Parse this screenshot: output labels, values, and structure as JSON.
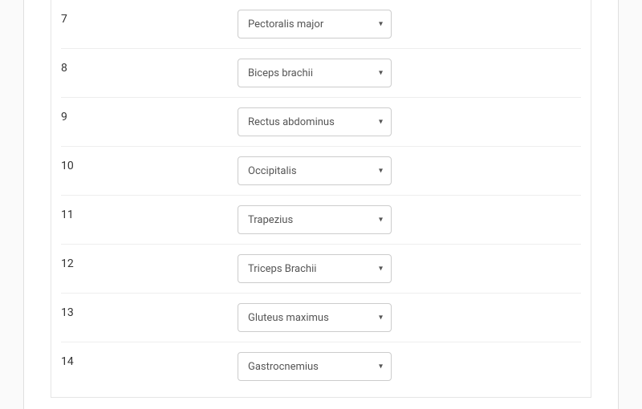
{
  "form": {
    "rows": [
      {
        "number": "7",
        "value": "Pectoralis major"
      },
      {
        "number": "8",
        "value": "Biceps brachii"
      },
      {
        "number": "9",
        "value": "Rectus abdominus"
      },
      {
        "number": "10",
        "value": "Occipitalis"
      },
      {
        "number": "11",
        "value": "Trapezius"
      },
      {
        "number": "12",
        "value": "Triceps Brachii"
      },
      {
        "number": "13",
        "value": "Gluteus maximus"
      },
      {
        "number": "14",
        "value": "Gastrocnemius"
      }
    ]
  },
  "styles": {
    "background_color": "#fafafa",
    "form_background": "#ffffff",
    "border_color": "#e5e5e5",
    "row_divider_color": "#eeeeee",
    "select_border": "#cccccc",
    "text_color": "#333333",
    "select_text_color": "#555555",
    "row_number_fontsize": 14,
    "select_fontsize": 13,
    "select_width": 192,
    "select_height": 36,
    "number_col_width": 220
  }
}
